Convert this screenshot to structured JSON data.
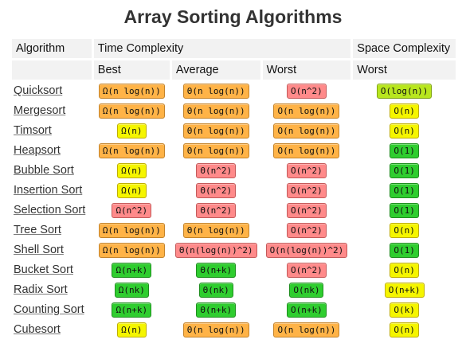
{
  "title": "Array Sorting Algorithms",
  "headers": {
    "algorithm": "Algorithm",
    "time": "Time Complexity",
    "space": "Space Complexity",
    "best": "Best",
    "average": "Average",
    "worst": "Worst",
    "space_worst": "Worst"
  },
  "colors": {
    "orange": "#ffb347",
    "yellow": "#f5f500",
    "red": "#ff8a8a",
    "green": "#2fcd2f",
    "lime": "#b8e61e"
  },
  "rows": [
    {
      "name": "Quicksort",
      "best": [
        "Ω(n log(n))",
        "orange"
      ],
      "avg": [
        "Θ(n log(n))",
        "orange"
      ],
      "worst": [
        "O(n^2)",
        "red"
      ],
      "space": [
        "O(log(n))",
        "lime"
      ]
    },
    {
      "name": "Mergesort",
      "best": [
        "Ω(n log(n))",
        "orange"
      ],
      "avg": [
        "Θ(n log(n))",
        "orange"
      ],
      "worst": [
        "O(n log(n))",
        "orange"
      ],
      "space": [
        "O(n)",
        "yellow"
      ]
    },
    {
      "name": "Timsort",
      "best": [
        "Ω(n)",
        "yellow"
      ],
      "avg": [
        "Θ(n log(n))",
        "orange"
      ],
      "worst": [
        "O(n log(n))",
        "orange"
      ],
      "space": [
        "O(n)",
        "yellow"
      ]
    },
    {
      "name": "Heapsort",
      "best": [
        "Ω(n log(n))",
        "orange"
      ],
      "avg": [
        "Θ(n log(n))",
        "orange"
      ],
      "worst": [
        "O(n log(n))",
        "orange"
      ],
      "space": [
        "O(1)",
        "green"
      ]
    },
    {
      "name": "Bubble Sort",
      "best": [
        "Ω(n)",
        "yellow"
      ],
      "avg": [
        "Θ(n^2)",
        "red"
      ],
      "worst": [
        "O(n^2)",
        "red"
      ],
      "space": [
        "O(1)",
        "green"
      ]
    },
    {
      "name": "Insertion Sort",
      "best": [
        "Ω(n)",
        "yellow"
      ],
      "avg": [
        "Θ(n^2)",
        "red"
      ],
      "worst": [
        "O(n^2)",
        "red"
      ],
      "space": [
        "O(1)",
        "green"
      ]
    },
    {
      "name": "Selection Sort",
      "best": [
        "Ω(n^2)",
        "red"
      ],
      "avg": [
        "Θ(n^2)",
        "red"
      ],
      "worst": [
        "O(n^2)",
        "red"
      ],
      "space": [
        "O(1)",
        "green"
      ]
    },
    {
      "name": "Tree Sort",
      "best": [
        "Ω(n log(n))",
        "orange"
      ],
      "avg": [
        "Θ(n log(n))",
        "orange"
      ],
      "worst": [
        "O(n^2)",
        "red"
      ],
      "space": [
        "O(n)",
        "yellow"
      ]
    },
    {
      "name": "Shell Sort",
      "best": [
        "Ω(n log(n))",
        "orange"
      ],
      "avg": [
        "Θ(n(log(n))^2)",
        "red"
      ],
      "worst": [
        "O(n(log(n))^2)",
        "red"
      ],
      "space": [
        "O(1)",
        "green"
      ]
    },
    {
      "name": "Bucket Sort",
      "best": [
        "Ω(n+k)",
        "green"
      ],
      "avg": [
        "Θ(n+k)",
        "green"
      ],
      "worst": [
        "O(n^2)",
        "red"
      ],
      "space": [
        "O(n)",
        "yellow"
      ]
    },
    {
      "name": "Radix Sort",
      "best": [
        "Ω(nk)",
        "green"
      ],
      "avg": [
        "Θ(nk)",
        "green"
      ],
      "worst": [
        "O(nk)",
        "green"
      ],
      "space": [
        "O(n+k)",
        "yellow"
      ]
    },
    {
      "name": "Counting Sort",
      "best": [
        "Ω(n+k)",
        "green"
      ],
      "avg": [
        "Θ(n+k)",
        "green"
      ],
      "worst": [
        "O(n+k)",
        "green"
      ],
      "space": [
        "O(k)",
        "yellow"
      ]
    },
    {
      "name": "Cubesort",
      "best": [
        "Ω(n)",
        "yellow"
      ],
      "avg": [
        "Θ(n log(n))",
        "orange"
      ],
      "worst": [
        "O(n log(n))",
        "orange"
      ],
      "space": [
        "O(n)",
        "yellow"
      ]
    }
  ]
}
